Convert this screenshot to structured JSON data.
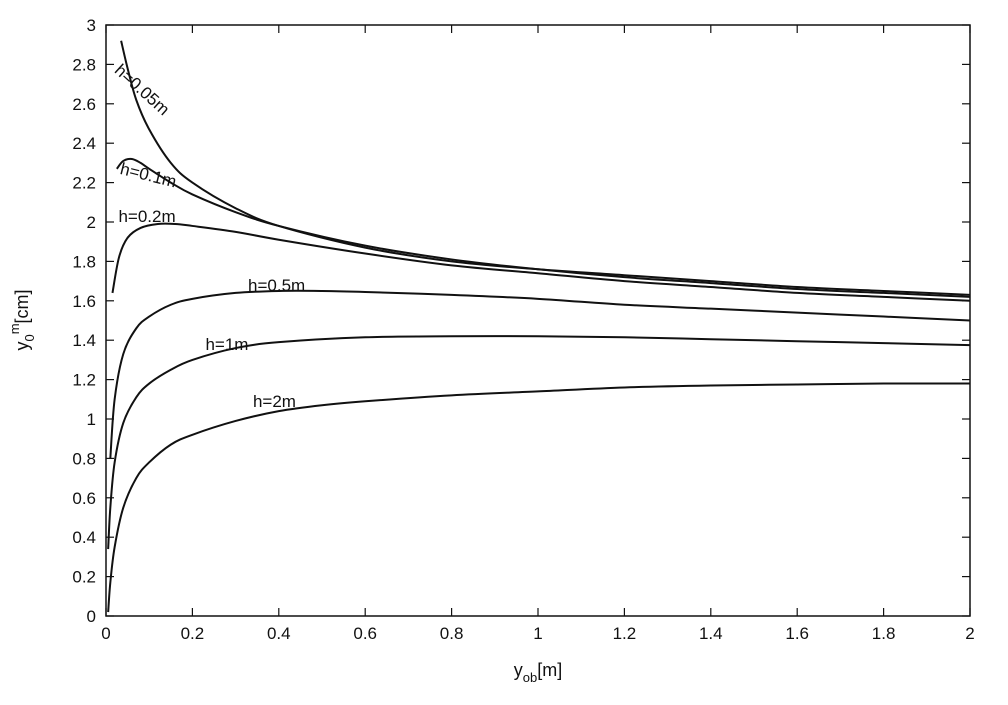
{
  "chart_data": {
    "type": "line",
    "title": "",
    "xlabel": {
      "main": "y",
      "sub": "ob",
      "unit": "[m]"
    },
    "ylabel": {
      "main": "y",
      "sub": "0",
      "sup": "m",
      "unit": "[cm]"
    },
    "xlim": [
      0,
      2
    ],
    "ylim": [
      0,
      3
    ],
    "x_ticks": [
      "0",
      "0.2",
      "0.4",
      "0.6",
      "0.8",
      "1",
      "1.2",
      "1.4",
      "1.6",
      "1.8",
      "2"
    ],
    "y_ticks": [
      "0",
      "0.2",
      "0.4",
      "0.6",
      "0.8",
      "1",
      "1.2",
      "1.4",
      "1.6",
      "1.8",
      "2",
      "2.2",
      "2.4",
      "2.6",
      "2.8",
      "3"
    ],
    "grid": false,
    "line_color": "#111111",
    "series": [
      {
        "name": "h=0.05m",
        "x": [
          0.035,
          0.05,
          0.07,
          0.1,
          0.15,
          0.2,
          0.3,
          0.4,
          0.6,
          0.8,
          1.0,
          1.2,
          1.4,
          1.6,
          1.8,
          2.0
        ],
        "y": [
          2.92,
          2.78,
          2.62,
          2.47,
          2.3,
          2.2,
          2.07,
          1.98,
          1.87,
          1.8,
          1.76,
          1.73,
          1.7,
          1.67,
          1.65,
          1.63
        ]
      },
      {
        "name": "h=0.1m",
        "x": [
          0.025,
          0.04,
          0.06,
          0.08,
          0.1,
          0.15,
          0.2,
          0.3,
          0.4,
          0.6,
          0.8,
          1.0,
          1.2,
          1.4,
          1.6,
          1.8,
          2.0
        ],
        "y": [
          2.27,
          2.31,
          2.32,
          2.3,
          2.27,
          2.2,
          2.14,
          2.05,
          1.98,
          1.88,
          1.81,
          1.76,
          1.72,
          1.69,
          1.66,
          1.64,
          1.62
        ]
      },
      {
        "name": "h=0.2m",
        "x": [
          0.015,
          0.03,
          0.05,
          0.08,
          0.12,
          0.16,
          0.2,
          0.3,
          0.4,
          0.6,
          0.8,
          1.0,
          1.2,
          1.4,
          1.6,
          1.8,
          2.0
        ],
        "y": [
          1.64,
          1.82,
          1.92,
          1.97,
          1.99,
          1.99,
          1.98,
          1.95,
          1.91,
          1.84,
          1.78,
          1.74,
          1.7,
          1.67,
          1.64,
          1.62,
          1.6
        ]
      },
      {
        "name": "h=0.5m",
        "x": [
          0.01,
          0.02,
          0.04,
          0.07,
          0.1,
          0.15,
          0.2,
          0.3,
          0.4,
          0.5,
          0.6,
          0.8,
          1.0,
          1.2,
          1.4,
          1.6,
          1.8,
          2.0
        ],
        "y": [
          0.8,
          1.1,
          1.33,
          1.46,
          1.52,
          1.58,
          1.61,
          1.64,
          1.65,
          1.65,
          1.645,
          1.63,
          1.61,
          1.58,
          1.56,
          1.54,
          1.52,
          1.5
        ]
      },
      {
        "name": "h=1m",
        "x": [
          0.005,
          0.01,
          0.02,
          0.04,
          0.07,
          0.1,
          0.15,
          0.2,
          0.3,
          0.4,
          0.6,
          0.8,
          1.0,
          1.2,
          1.4,
          1.6,
          1.8,
          2.0
        ],
        "y": [
          0.34,
          0.55,
          0.78,
          0.98,
          1.11,
          1.18,
          1.25,
          1.3,
          1.36,
          1.39,
          1.415,
          1.42,
          1.42,
          1.415,
          1.405,
          1.395,
          1.385,
          1.375
        ]
      },
      {
        "name": "h=2m",
        "x": [
          0.005,
          0.01,
          0.02,
          0.04,
          0.07,
          0.1,
          0.15,
          0.2,
          0.3,
          0.4,
          0.5,
          0.6,
          0.8,
          1.0,
          1.2,
          1.4,
          1.6,
          1.8,
          2.0
        ],
        "y": [
          0.02,
          0.17,
          0.35,
          0.55,
          0.7,
          0.78,
          0.87,
          0.92,
          0.99,
          1.04,
          1.07,
          1.09,
          1.12,
          1.14,
          1.16,
          1.17,
          1.175,
          1.18,
          1.18
        ]
      }
    ],
    "annotations": [
      {
        "text": "h=0.05m",
        "x": 0.075,
        "y": 2.65,
        "rotate": 42
      },
      {
        "text": "h=0.1m",
        "x": 0.095,
        "y": 2.21,
        "rotate": 14
      },
      {
        "text": "h=0.2m",
        "x": 0.095,
        "y": 2.0,
        "rotate": 0
      },
      {
        "text": "h=0.5m",
        "x": 0.395,
        "y": 1.65,
        "rotate": 0
      },
      {
        "text": "h=1m",
        "x": 0.28,
        "y": 1.35,
        "rotate": 0
      },
      {
        "text": "h=2m",
        "x": 0.39,
        "y": 1.06,
        "rotate": 0
      }
    ]
  }
}
